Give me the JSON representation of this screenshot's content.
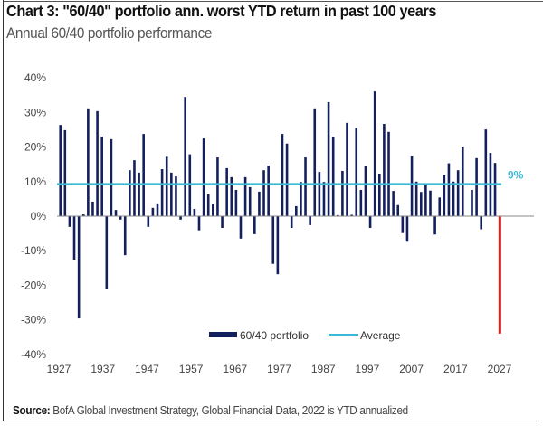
{
  "header": {
    "title": "Chart 3: \"60/40\" portfolio ann. worst YTD return in past 100 years",
    "subtitle": "Annual 60/40 portfolio performance"
  },
  "footer": {
    "source_label": "Source:",
    "source_text": " BofA Global Investment Strategy, Global Financial Data, 2022 is YTD annualized"
  },
  "colors": {
    "bar": "#14205e",
    "highlight_bar": "#e02020",
    "average_line": "#3db8d6",
    "zero_line": "#888888"
  },
  "chart_data": {
    "type": "bar",
    "title": "Chart 3: \"60/40\" portfolio ann. worst YTD return in past 100 years",
    "subtitle": "Annual 60/40 portfolio performance",
    "xlabel": "",
    "ylabel": "",
    "ylim": [
      -40,
      40
    ],
    "yticks": [
      40,
      30,
      20,
      10,
      0,
      -10,
      -20,
      -30,
      -40
    ],
    "ytick_labels": [
      "40%",
      "30%",
      "20%",
      "10%",
      "0%",
      "-10%",
      "-20%",
      "-30%",
      "-40%"
    ],
    "xticks": [
      1927,
      1937,
      1947,
      1957,
      1967,
      1977,
      1987,
      1997,
      2007,
      2017,
      2027
    ],
    "xtick_labels": [
      "1927",
      "1937",
      "1947",
      "1957",
      "1967",
      "1977",
      "1987",
      "1997",
      "2007",
      "2017",
      "2027"
    ],
    "grid": false,
    "legend": {
      "placement": "bottom-center",
      "entries": [
        {
          "label": "60/40 portfolio",
          "type": "bar"
        },
        {
          "label": "Average",
          "type": "line"
        }
      ]
    },
    "average": {
      "value": 9.3,
      "label": "9%"
    },
    "highlight": {
      "year": 2022,
      "note": "YTD annualized"
    },
    "series": [
      {
        "name": "60/40 portfolio",
        "x": [
          1927,
          1928,
          1929,
          1930,
          1931,
          1932,
          1933,
          1934,
          1935,
          1936,
          1937,
          1938,
          1939,
          1940,
          1941,
          1942,
          1943,
          1944,
          1945,
          1946,
          1947,
          1948,
          1949,
          1950,
          1951,
          1952,
          1953,
          1954,
          1955,
          1956,
          1957,
          1958,
          1959,
          1960,
          1961,
          1962,
          1963,
          1964,
          1965,
          1966,
          1967,
          1968,
          1969,
          1970,
          1971,
          1972,
          1973,
          1974,
          1975,
          1976,
          1977,
          1978,
          1979,
          1980,
          1981,
          1982,
          1983,
          1984,
          1985,
          1986,
          1987,
          1988,
          1989,
          1990,
          1991,
          1992,
          1993,
          1994,
          1995,
          1996,
          1997,
          1998,
          1999,
          2000,
          2001,
          2002,
          2003,
          2004,
          2005,
          2006,
          2007,
          2008,
          2009,
          2010,
          2011,
          2012,
          2013,
          2014,
          2015,
          2016,
          2017,
          2018,
          2019,
          2020,
          2021,
          2022
        ],
        "values": [
          26.4,
          24.9,
          -3.1,
          -12.6,
          -29.6,
          0.5,
          31.2,
          4.2,
          30.4,
          23.0,
          -21.2,
          22.3,
          1.8,
          -1.0,
          -11.3,
          13.3,
          16.2,
          12.6,
          23.8,
          -3.1,
          2.4,
          3.7,
          13.6,
          17.2,
          12.6,
          11.5,
          -1.0,
          34.5,
          17.9,
          2.1,
          -4.1,
          22.5,
          6.3,
          3.5,
          17.0,
          -3.4,
          13.9,
          11.3,
          7.6,
          -6.5,
          11.3,
          8.4,
          -5.2,
          7.1,
          13.3,
          14.6,
          -13.8,
          -16.8,
          23.8,
          21.0,
          -3.4,
          2.9,
          9.9,
          17.0,
          -2.6,
          31.2,
          12.8,
          9.9,
          33.0,
          23.0,
          0.3,
          13.1,
          27.0,
          0.4,
          25.6,
          7.6,
          14.4,
          -3.4,
          36.1,
          12.3,
          26.7,
          24.4,
          7.3,
          3.2,
          -4.9,
          -7.4,
          17.5,
          10.0,
          7.0,
          9.0,
          7.4,
          -5.3,
          5.4,
          12.0,
          15.3,
          10.0,
          13.3,
          20.1,
          0.0,
          7.6,
          16.8,
          -3.8,
          25.1,
          18.3,
          15.4,
          -34.0
        ]
      },
      {
        "name": "Average",
        "type": "line",
        "value": 9.3
      }
    ]
  }
}
